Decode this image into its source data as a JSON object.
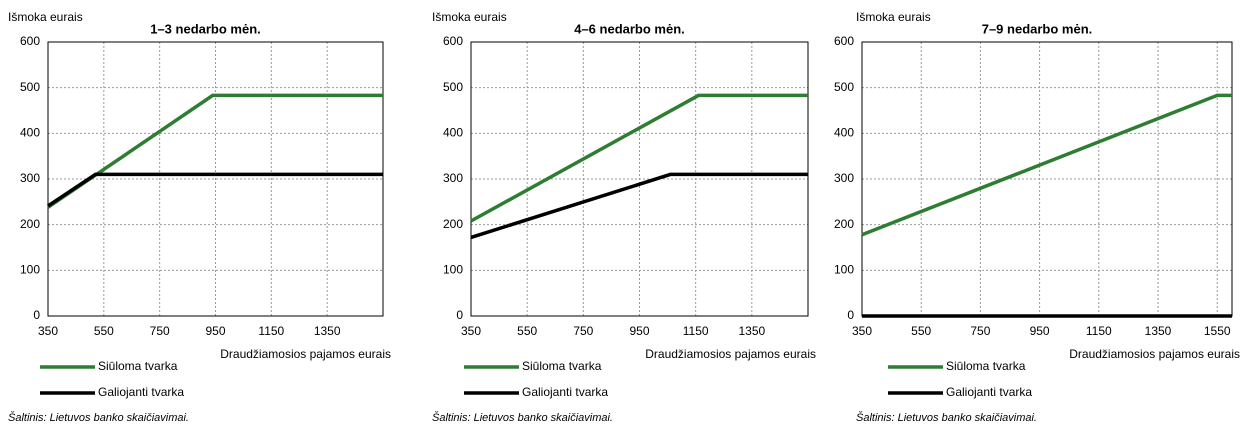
{
  "chart_data": [
    {
      "type": "line",
      "title": "1–3 nedarbo mėn.",
      "y_label": "Išmoka eurais",
      "x_label": "Draudžiamosios pajamos eurais",
      "source": "Šaltinis: Lietuvos banko skaičiavimai.",
      "xlim": [
        350,
        1550
      ],
      "xticks": [
        350,
        550,
        750,
        950,
        1150,
        1350
      ],
      "ylim": [
        0,
        600
      ],
      "yticks": [
        0,
        100,
        200,
        300,
        400,
        500,
        600
      ],
      "grid": true,
      "series": [
        {
          "name": "Siūloma tvarka",
          "color": "#2e7d32",
          "x": [
            350,
            940,
            1550
          ],
          "values": [
            238,
            483,
            483
          ]
        },
        {
          "name": "Galiojanti tvarka",
          "color": "#000000",
          "x": [
            350,
            520,
            1550
          ],
          "values": [
            241,
            310,
            310
          ]
        }
      ]
    },
    {
      "type": "line",
      "title": "4–6 nedarbo mėn.",
      "y_label": "Išmoka eurais",
      "x_label": "Draudžiamosios pajamos eurais",
      "source": "Šaltinis: Lietuvos banko skaičiavimai.",
      "xlim": [
        350,
        1550
      ],
      "xticks": [
        350,
        550,
        750,
        950,
        1150,
        1350
      ],
      "ylim": [
        0,
        600
      ],
      "yticks": [
        0,
        100,
        200,
        300,
        400,
        500,
        600
      ],
      "grid": true,
      "series": [
        {
          "name": "Siūloma tvarka",
          "color": "#2e7d32",
          "x": [
            350,
            1160,
            1550
          ],
          "values": [
            208,
            483,
            483
          ]
        },
        {
          "name": "Galiojanti tvarka",
          "color": "#000000",
          "x": [
            350,
            1060,
            1550
          ],
          "values": [
            172,
            310,
            310
          ]
        }
      ]
    },
    {
      "type": "line",
      "title": "7–9 nedarbo mėn.",
      "y_label": "Išmoka eurais",
      "x_label": "Draudžiamosios pajamos eurais",
      "source": "Šaltinis: Lietuvos banko skaičiavimai.",
      "xlim": [
        350,
        1600
      ],
      "xticks": [
        350,
        550,
        750,
        950,
        1150,
        1350,
        1550
      ],
      "ylim": [
        0,
        600
      ],
      "yticks": [
        0,
        100,
        200,
        300,
        400,
        500,
        600
      ],
      "grid": true,
      "series": [
        {
          "name": "Siūloma tvarka",
          "color": "#2e7d32",
          "x": [
            350,
            1550,
            1600
          ],
          "values": [
            178,
            483,
            483
          ]
        },
        {
          "name": "Galiojanti tvarka",
          "color": "#000000",
          "x": [
            350,
            1600
          ],
          "values": [
            0,
            0
          ]
        }
      ]
    }
  ]
}
